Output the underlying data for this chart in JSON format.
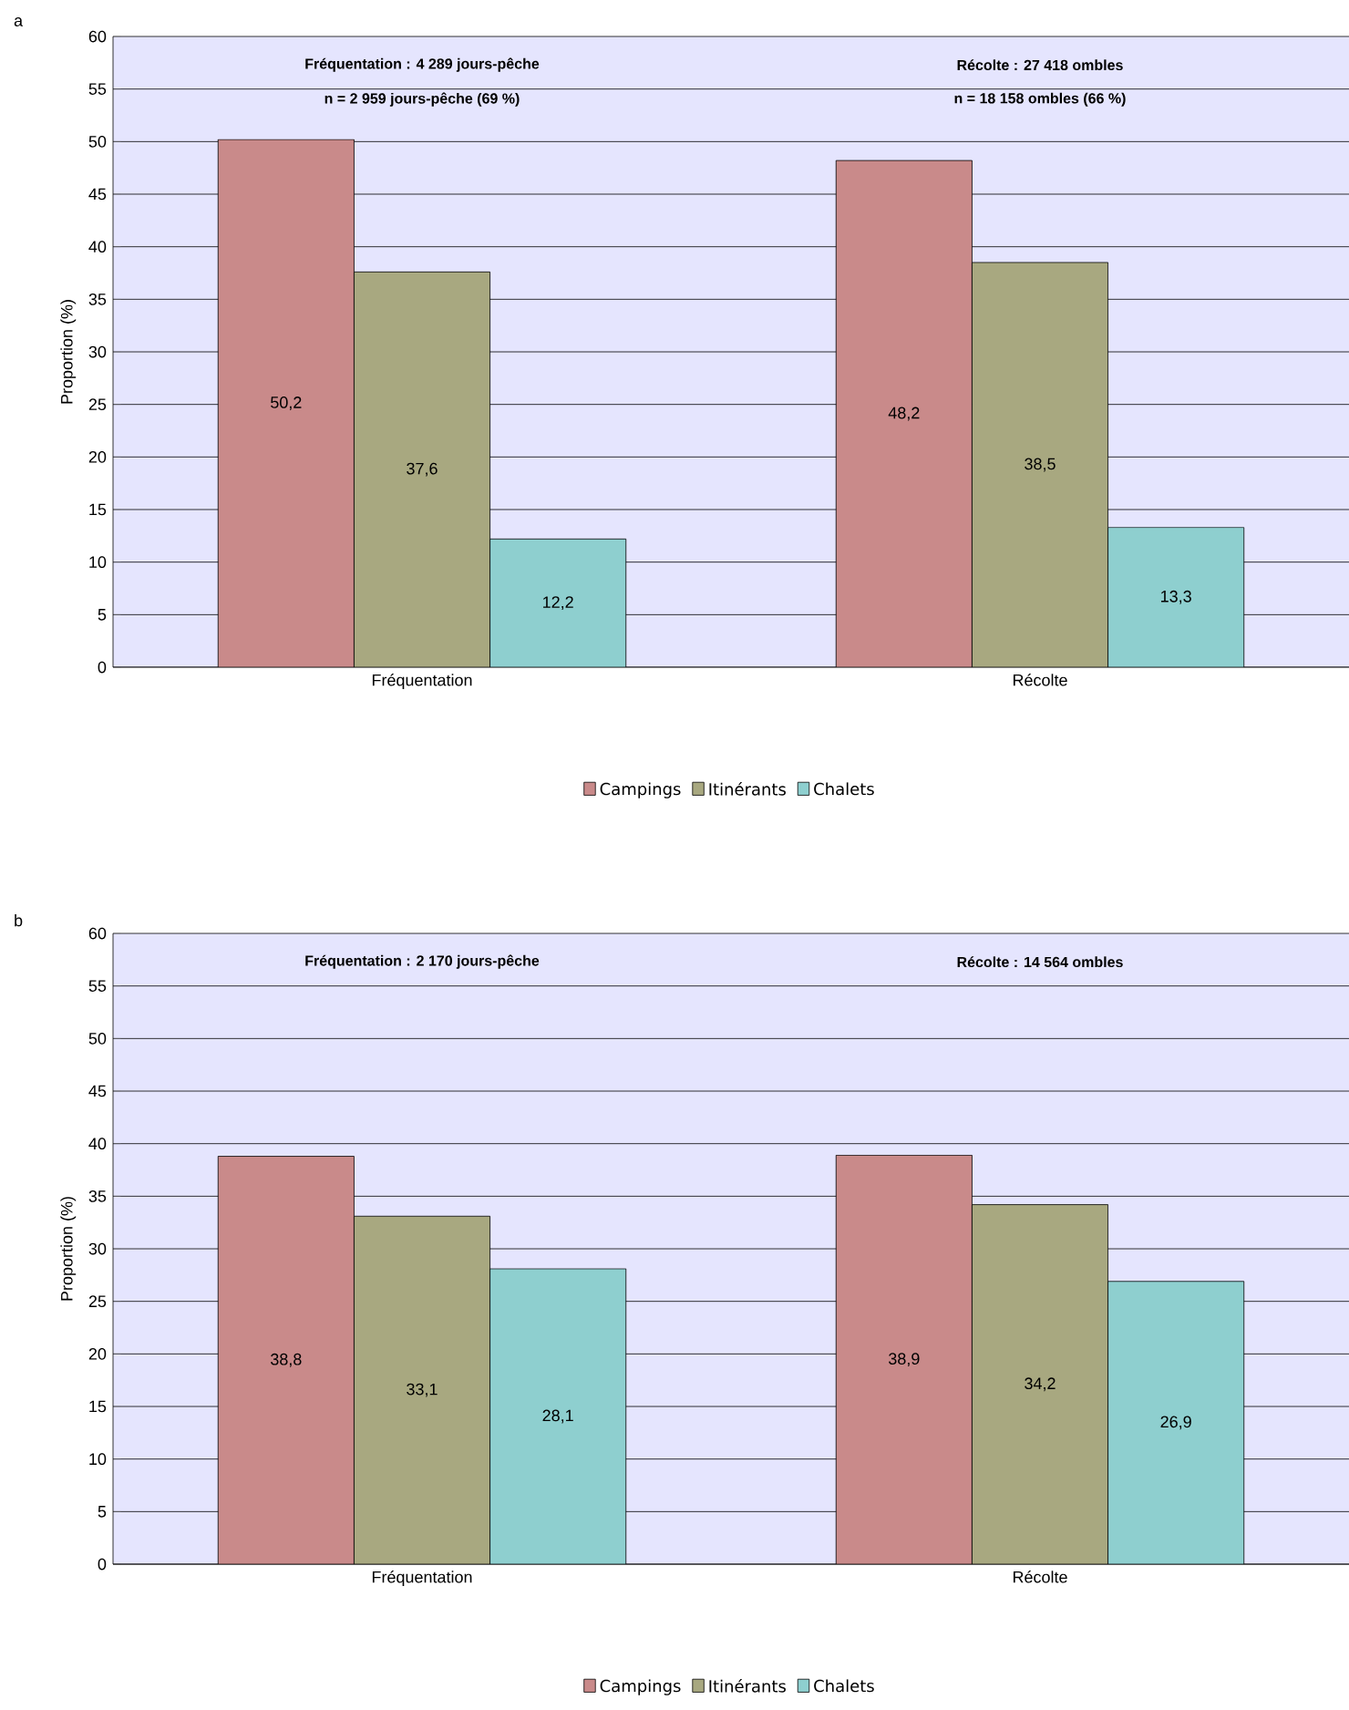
{
  "chart_data": [
    {
      "type": "bar",
      "title": "a",
      "ylabel": "Proportion (%)",
      "categories": [
        "Fréquentation",
        "Récolte"
      ],
      "series": [
        {
          "name": "Campings",
          "color": "#c98a8a",
          "values": [
            50.2,
            48.2
          ],
          "value_labels": [
            "50,2",
            "48,2"
          ]
        },
        {
          "name": "Itinérants",
          "color": "#a8a880",
          "values": [
            37.6,
            38.5
          ],
          "value_labels": [
            "37,6",
            "38,5"
          ]
        },
        {
          "name": "Chalets",
          "color": "#8ecfcf",
          "values": [
            12.2,
            13.3
          ],
          "value_labels": [
            "12,2",
            "13,3"
          ]
        }
      ],
      "ylim": [
        0,
        60
      ],
      "yticks": [
        0,
        5,
        10,
        15,
        20,
        25,
        30,
        35,
        40,
        45,
        50,
        55,
        60
      ],
      "grid": "y",
      "legend": "bottom",
      "annotations": [
        "Fréquentation : 4 289 jours-pêche",
        "n = 2 959 jours-pêche (69 %)",
        "Récolte : 27 418 ombles",
        "n = 18 158 ombles (66 %)"
      ]
    },
    {
      "type": "bar",
      "title": "b",
      "ylabel": "Proportion (%)",
      "categories": [
        "Fréquentation",
        "Récolte"
      ],
      "series": [
        {
          "name": "Campings",
          "color": "#c98a8a",
          "values": [
            38.8,
            38.9
          ],
          "value_labels": [
            "38,8",
            "38,9"
          ]
        },
        {
          "name": "Itinérants",
          "color": "#a8a880",
          "values": [
            33.1,
            34.2
          ],
          "value_labels": [
            "33,1",
            "34,2"
          ]
        },
        {
          "name": "Chalets",
          "color": "#8ecfcf",
          "values": [
            28.1,
            26.9
          ],
          "value_labels": [
            "28,1",
            "26,9"
          ]
        }
      ],
      "ylim": [
        0,
        60
      ],
      "yticks": [
        0,
        5,
        10,
        15,
        20,
        25,
        30,
        35,
        40,
        45,
        50,
        55,
        60
      ],
      "grid": "y",
      "legend": "bottom",
      "annotations": [
        "Fréquentation : 2 170 jours-pêche",
        "Récolte : 14 564 ombles"
      ]
    }
  ]
}
